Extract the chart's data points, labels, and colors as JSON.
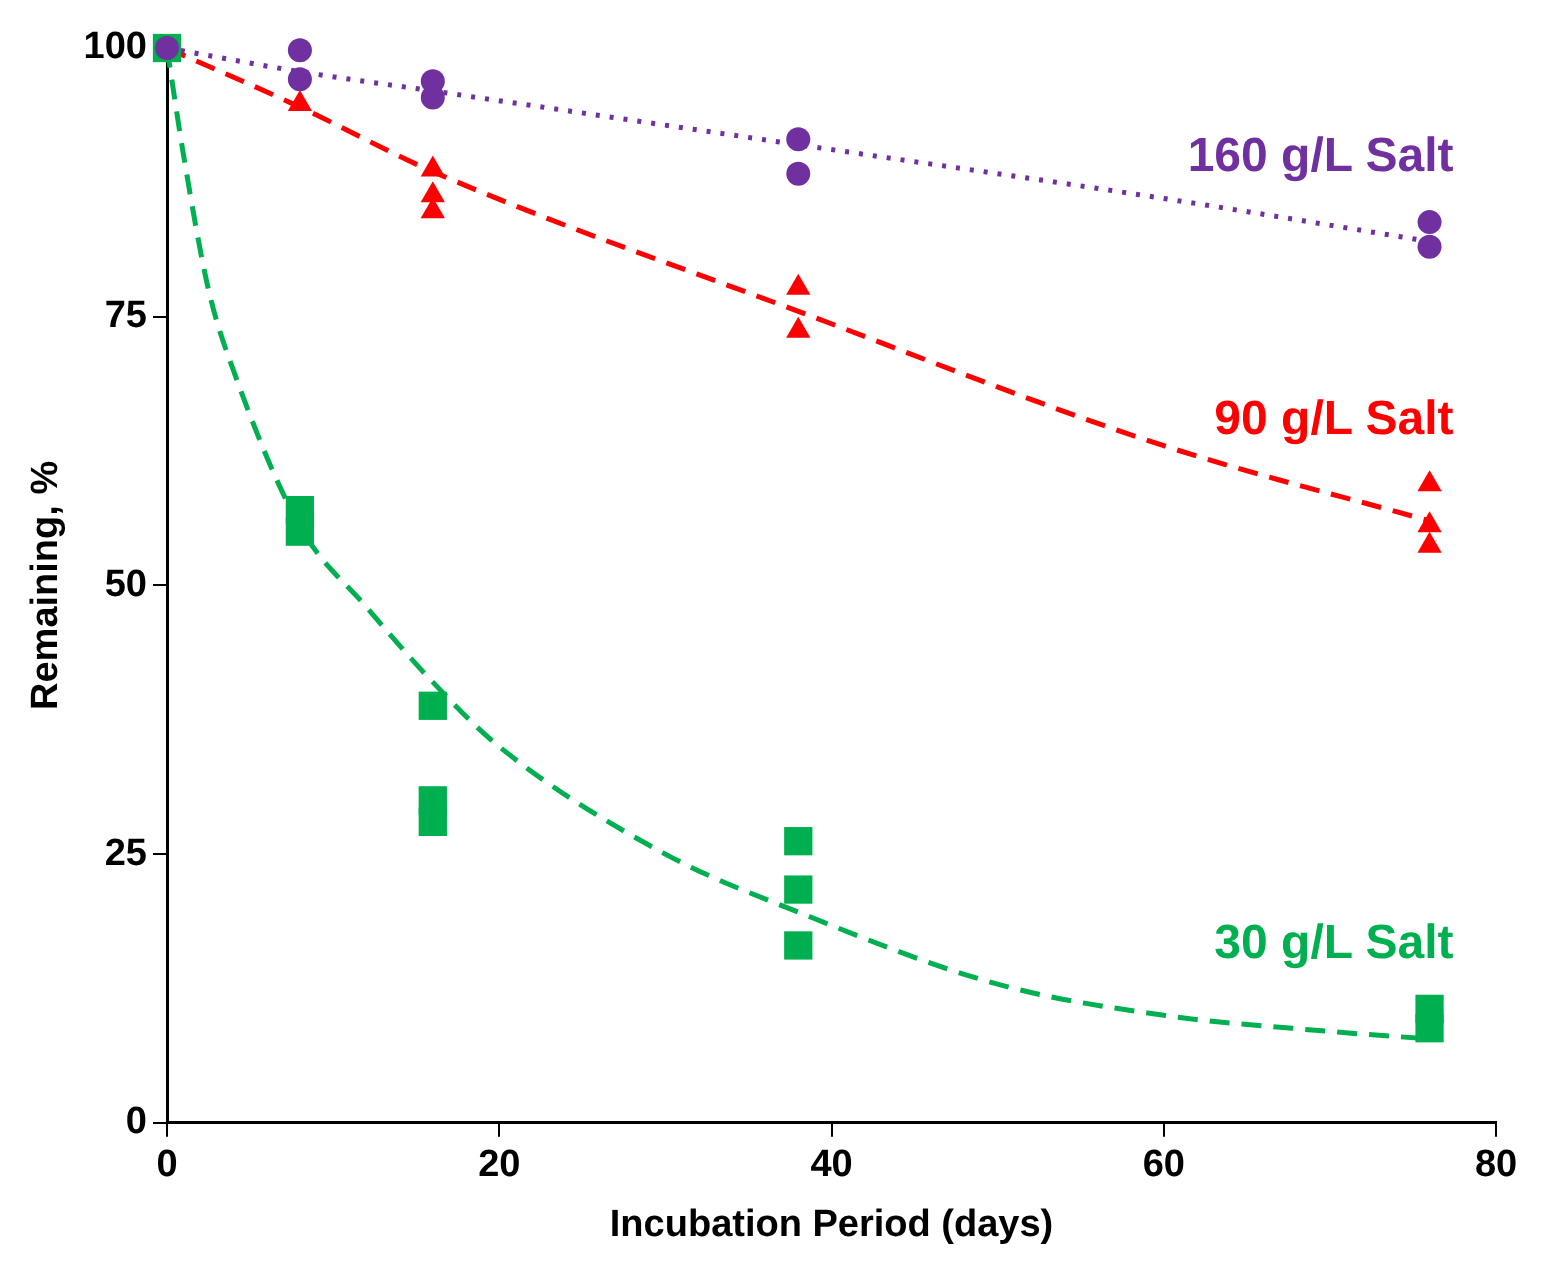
{
  "chart_data": {
    "type": "scatter",
    "xlabel": "Incubation Period (days)",
    "ylabel": "Remaining, %",
    "xlim": [
      0,
      80
    ],
    "xticks": [
      0,
      20,
      40,
      60,
      80
    ],
    "ylim": [
      0,
      100
    ],
    "yticks": [
      0,
      25,
      50,
      75,
      100
    ],
    "grid": false,
    "legend": false,
    "series": [
      {
        "name": "160 g/L Salt",
        "color": "#7030a0",
        "marker": "circle",
        "x": [
          0,
          8,
          8,
          16,
          16,
          38,
          38,
          76,
          76
        ],
        "values": [
          100,
          99.8,
          97.1,
          96.9,
          95.4,
          91.5,
          88.3,
          83.8,
          81.5
        ]
      },
      {
        "name": "90 g/L Salt",
        "color": "#ff0000",
        "marker": "triangle",
        "x": [
          8,
          16,
          16,
          16,
          38,
          38,
          76,
          76,
          76
        ],
        "values": [
          94.8,
          88.7,
          86.3,
          84.8,
          77.7,
          73.7,
          59.4,
          55.6,
          53.7
        ]
      },
      {
        "name": "30 g/L Salt",
        "color": "#00b050",
        "marker": "square",
        "x": [
          0,
          8,
          8,
          16,
          16,
          16,
          38,
          38,
          38,
          76,
          76
        ],
        "values": [
          100,
          57,
          55,
          38.8,
          30,
          28,
          26.2,
          21.7,
          16.5,
          10.6,
          8.8
        ]
      },
      {
        "type": "line",
        "color": "#7030a0",
        "line_style": "dotted",
        "marker": "none",
        "x": [
          0,
          8,
          16,
          38,
          60,
          76
        ],
        "values": [
          100,
          97.8,
          96,
          91,
          86,
          82
        ]
      },
      {
        "type": "line",
        "color": "#ff0000",
        "line_style": "dashed",
        "marker": "none",
        "x": [
          0,
          8,
          16,
          38,
          60,
          76
        ],
        "values": [
          100,
          94.5,
          88.5,
          75.5,
          63,
          56
        ]
      },
      {
        "type": "line",
        "color": "#00b050",
        "line_style": "dashed",
        "marker": "none",
        "x": [
          0,
          1,
          2.5,
          4,
          8,
          12,
          16,
          20,
          30,
          38,
          50,
          60,
          70,
          76
        ],
        "values": [
          100,
          90,
          77.5,
          70,
          55.5,
          48,
          41,
          35,
          25,
          19.6,
          12.9,
          10,
          8.5,
          7.8
        ]
      }
    ]
  }
}
